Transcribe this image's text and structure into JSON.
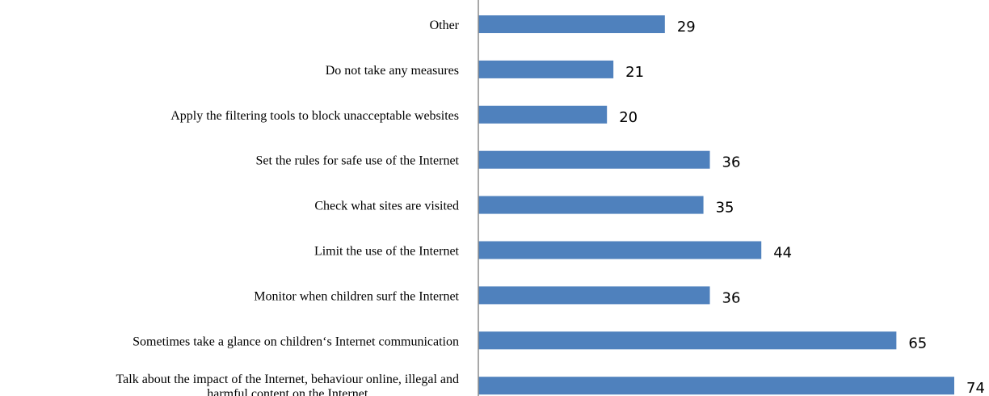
{
  "chart_data": {
    "type": "bar",
    "orientation": "horizontal",
    "categories": [
      "Other",
      "Do not take any measures",
      "Apply the filtering tools to block unacceptable websites",
      "Set the rules for safe use of the Internet",
      "Check what sites are visited",
      "Limit the use of the Internet",
      "Monitor when children surf the Internet",
      "Sometimes take a glance on children‘s Internet communication",
      "Talk about the impact of the Internet, behaviour online, illegal and harmful content on the Internet"
    ],
    "category_label_lines": [
      [
        "Other"
      ],
      [
        "Do not take any measures"
      ],
      [
        "Apply the filtering tools to block unacceptable websites"
      ],
      [
        "Set the rules for safe use of the Internet"
      ],
      [
        "Check what sites are visited"
      ],
      [
        "Limit the use of the Internet"
      ],
      [
        "Monitor when children surf the Internet"
      ],
      [
        "Sometimes take a glance on children‘s Internet communication"
      ],
      [
        "Talk about the impact of the Internet, behaviour online, illegal and",
        "harmful content on the Internet"
      ]
    ],
    "values": [
      29,
      21,
      20,
      36,
      35,
      44,
      36,
      65,
      74
    ],
    "value_labels": [
      "29",
      "21",
      "20",
      "36",
      "35",
      "44",
      "36",
      "65",
      "74"
    ],
    "xlim": [
      0,
      80
    ],
    "grid": false,
    "legend": "none",
    "bar_color": "#4f81bd",
    "axis_color": "#8c8c8c"
  }
}
